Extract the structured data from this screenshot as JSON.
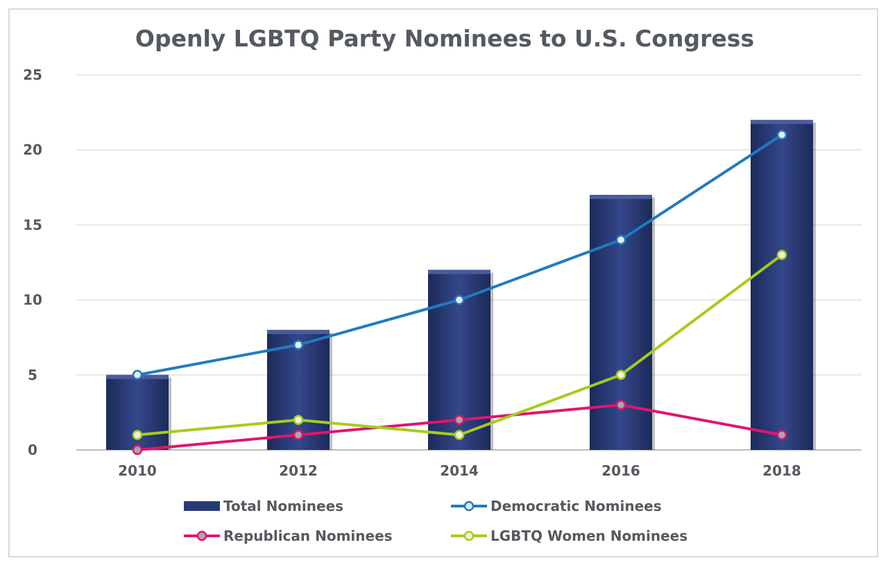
{
  "chart_data": {
    "type": "bar+line",
    "title": "Openly LGBTQ Party Nominees to U.S. Congress",
    "categories": [
      "2010",
      "2012",
      "2014",
      "2016",
      "2018"
    ],
    "ylim": [
      0,
      25
    ],
    "yticks": [
      0,
      5,
      10,
      15,
      20,
      25
    ],
    "grid": true,
    "legend_position": "bottom",
    "series": [
      {
        "name": "Total Nominees",
        "kind": "bar",
        "color": "#283a75",
        "values": [
          5,
          8,
          12,
          17,
          22
        ]
      },
      {
        "name": "Democratic Nominees",
        "kind": "line",
        "color": "#1f7bc1",
        "marker_fill": "#e8eef4",
        "values": [
          5,
          7,
          10,
          14,
          21
        ]
      },
      {
        "name": "Republican Nominees",
        "kind": "line",
        "color": "#e0156f",
        "marker_fill": "#a9a9a9",
        "values": [
          0,
          1,
          2,
          3,
          1
        ]
      },
      {
        "name": "LGBTQ Women Nominees",
        "kind": "line",
        "color": "#a6cc1a",
        "marker_fill": "#eef2dc",
        "values": [
          1,
          2,
          1,
          5,
          13
        ]
      }
    ]
  }
}
